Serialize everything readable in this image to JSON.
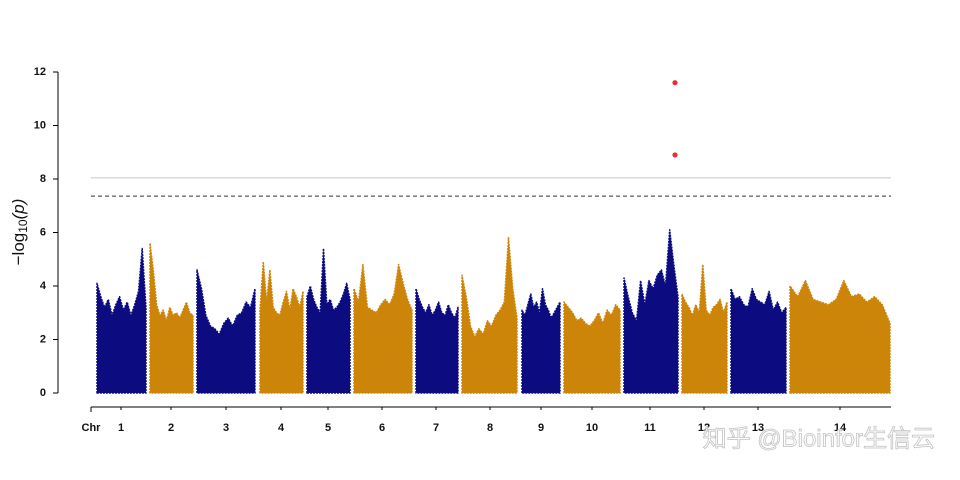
{
  "chart_data": {
    "type": "manhattan",
    "x_label": "Chr",
    "y_label": {
      "prefix": "−log",
      "sub": "10",
      "suffix": "(p)"
    },
    "xlim": [
      0,
      800
    ],
    "xticks": [
      {
        "value": 30,
        "label": "1"
      },
      {
        "value": 80,
        "label": "2"
      },
      {
        "value": 135,
        "label": "3"
      },
      {
        "value": 190,
        "label": "4"
      },
      {
        "value": 237,
        "label": "5"
      },
      {
        "value": 291,
        "label": "6"
      },
      {
        "value": 345,
        "label": "7"
      },
      {
        "value": 399,
        "label": "8"
      },
      {
        "value": 450,
        "label": "9"
      },
      {
        "value": 501,
        "label": "10"
      },
      {
        "value": 559,
        "label": "11"
      },
      {
        "value": 613,
        "label": "12"
      },
      {
        "value": 667,
        "label": "13"
      },
      {
        "value": 749,
        "label": "14"
      }
    ],
    "ylim": [
      0,
      12
    ],
    "yticks": [
      0,
      2,
      4,
      6,
      8,
      10,
      12
    ],
    "thresholds": [
      {
        "value": 8.04,
        "style": "solid",
        "color": "#c8c8c8"
      },
      {
        "value": 7.36,
        "style": "dashed",
        "color": "#333333"
      }
    ],
    "series": [
      {
        "color": "#0c0c80",
        "start": 6,
        "end": 55,
        "values": [
          4.1,
          3.6,
          3.2,
          3.5,
          2.9,
          3.3,
          3.6,
          3.1,
          3.4,
          2.9,
          3.3,
          3.8,
          5.4,
          3.2
        ]
      },
      {
        "color": "#cc8508",
        "start": 59,
        "end": 102,
        "values": [
          5.6,
          4.6,
          3.3,
          2.9,
          3.1,
          2.7,
          3.2,
          2.9,
          3.0,
          2.8,
          3.1,
          3.4,
          3.0,
          2.9
        ]
      },
      {
        "color": "#0c0c80",
        "start": 106,
        "end": 164,
        "values": [
          4.6,
          3.9,
          2.9,
          2.5,
          2.4,
          2.2,
          2.6,
          2.8,
          2.5,
          2.9,
          3.0,
          3.4,
          3.2,
          3.9
        ]
      },
      {
        "color": "#cc8508",
        "start": 169,
        "end": 212,
        "values": [
          3.1,
          4.9,
          3.4,
          4.6,
          3.2,
          3.0,
          2.9,
          3.4,
          3.8,
          3.1,
          3.9,
          3.6,
          3.2,
          3.8
        ]
      },
      {
        "color": "#0c0c80",
        "start": 216,
        "end": 259,
        "values": [
          3.6,
          4.0,
          3.5,
          3.2,
          3.0,
          5.4,
          3.3,
          3.5,
          3.1,
          3.2,
          3.4,
          3.7,
          4.1,
          3.5
        ]
      },
      {
        "color": "#cc8508",
        "start": 263,
        "end": 321,
        "values": [
          3.9,
          3.4,
          4.8,
          3.2,
          3.1,
          3.0,
          3.3,
          3.5,
          3.3,
          3.7,
          4.8,
          4.1,
          3.5,
          3.1
        ]
      },
      {
        "color": "#0c0c80",
        "start": 325,
        "end": 367,
        "values": [
          3.9,
          3.5,
          3.2,
          3.0,
          3.3,
          2.9,
          3.1,
          3.4,
          3.0,
          2.9,
          3.3,
          3.0,
          2.8,
          3.2
        ]
      },
      {
        "color": "#cc8508",
        "start": 371,
        "end": 426,
        "values": [
          4.4,
          3.6,
          2.5,
          2.1,
          2.4,
          2.2,
          2.7,
          2.5,
          2.9,
          3.1,
          3.4,
          5.8,
          3.9,
          2.8
        ]
      },
      {
        "color": "#0c0c80",
        "start": 431,
        "end": 469,
        "values": [
          3.1,
          2.9,
          3.3,
          3.7,
          3.2,
          3.4,
          3.0,
          3.9,
          3.3,
          3.1,
          2.8,
          3.0,
          3.2,
          3.4
        ]
      },
      {
        "color": "#cc8508",
        "start": 473,
        "end": 529,
        "values": [
          3.4,
          3.2,
          3.0,
          2.7,
          2.8,
          2.6,
          2.5,
          2.7,
          3.0,
          2.6,
          3.1,
          2.9,
          3.3,
          3.1
        ]
      },
      {
        "color": "#0c0c80",
        "start": 533,
        "end": 587,
        "values": [
          4.3,
          3.6,
          3.0,
          2.7,
          4.2,
          3.3,
          4.2,
          3.9,
          4.4,
          4.6,
          4.0,
          6.1,
          4.8,
          3.6
        ]
      },
      {
        "color": "#cc8508",
        "start": 591,
        "end": 636,
        "values": [
          3.7,
          3.4,
          3.2,
          2.9,
          3.3,
          3.0,
          4.8,
          3.1,
          2.9,
          3.2,
          3.3,
          3.5,
          3.0,
          3.4
        ]
      },
      {
        "color": "#0c0c80",
        "start": 640,
        "end": 695,
        "values": [
          3.9,
          3.5,
          3.6,
          3.3,
          3.2,
          3.9,
          3.5,
          3.4,
          3.3,
          3.8,
          3.1,
          3.4,
          3.0,
          3.2
        ]
      },
      {
        "color": "#cc8508",
        "start": 699,
        "end": 799,
        "values": [
          4.0,
          3.6,
          4.2,
          3.5,
          3.4,
          3.3,
          3.5,
          4.2,
          3.6,
          3.7,
          3.4,
          3.6,
          3.3,
          2.6
        ]
      }
    ],
    "significant": {
      "color": "#e8312a",
      "x": [
        584,
        584
      ],
      "values": [
        11.6,
        8.9
      ]
    },
    "watermark": "知乎 @Bioinfor生信云"
  }
}
